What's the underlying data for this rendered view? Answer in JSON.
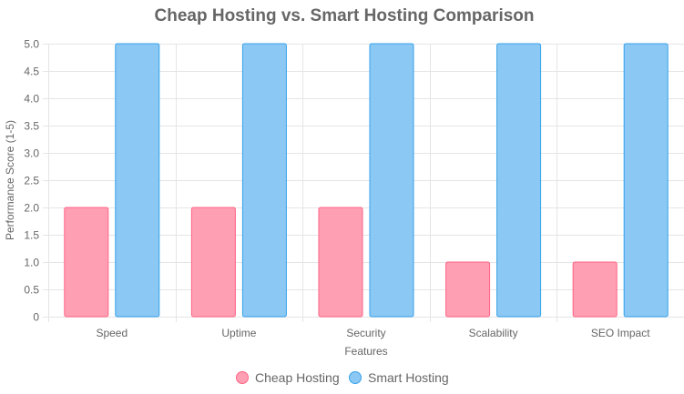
{
  "chart_data": {
    "type": "bar",
    "title": "Cheap Hosting vs. Smart Hosting Comparison",
    "xlabel": "Features",
    "ylabel": "Performance Score (1-5)",
    "categories": [
      "Speed",
      "Uptime",
      "Security",
      "Scalability",
      "SEO Impact"
    ],
    "ylim": [
      0,
      5
    ],
    "ytick_step": 0.5,
    "yticks": [
      "0",
      "0.5",
      "1.0",
      "1.5",
      "2.0",
      "2.5",
      "3.0",
      "3.5",
      "4.0",
      "4.5",
      "5.0"
    ],
    "grid": true,
    "legend_position": "bottom",
    "series": [
      {
        "name": "Cheap Hosting",
        "values": [
          2,
          2,
          2,
          1,
          1
        ],
        "fill": "#ff9fb4",
        "stroke": "#ff6384"
      },
      {
        "name": "Smart Hosting",
        "values": [
          5,
          5,
          5,
          5,
          5
        ],
        "fill": "#8bc8f4",
        "stroke": "#36a2eb"
      }
    ]
  }
}
